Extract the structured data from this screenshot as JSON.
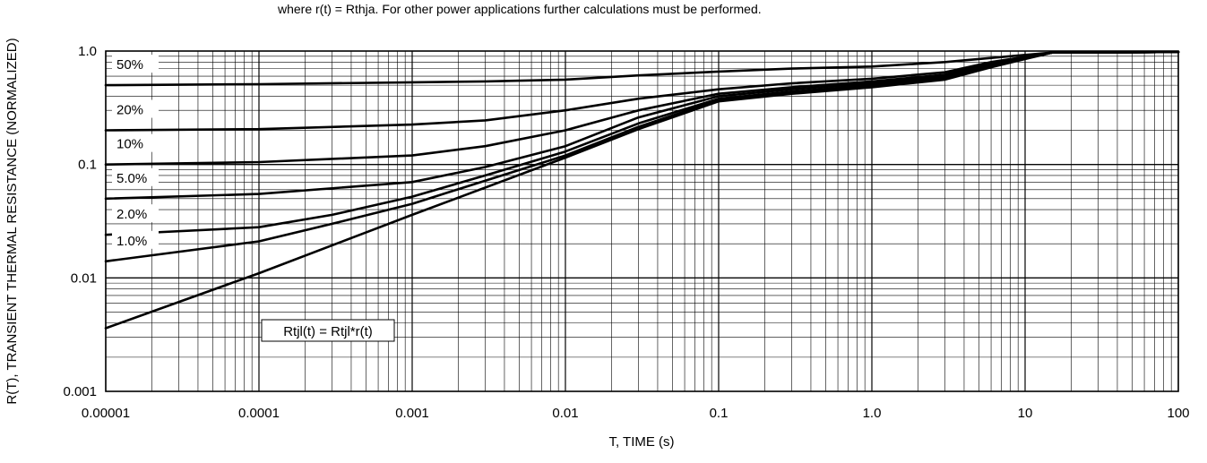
{
  "note_line": "where r(t) = Rthja. For other power applications further calculations must be performed.",
  "chart_data": {
    "type": "line",
    "title": "",
    "xlabel": "T, TIME (s)",
    "ylabel": "R(T), TRANSIENT THERMAL RESISTANCE (NORMALIZED)",
    "x_scale": "log",
    "y_scale": "log",
    "xlim": [
      1e-05,
      100
    ],
    "ylim": [
      0.001,
      1.0
    ],
    "grid": true,
    "x_ticks": [
      1e-05,
      0.0001,
      0.001,
      0.01,
      0.1,
      1.0,
      10,
      100
    ],
    "x_tick_labels": [
      "0.00001",
      "0.0001",
      "0.001",
      "0.01",
      "0.1",
      "1.0",
      "10",
      "100"
    ],
    "y_ticks": [
      0.001,
      0.01,
      0.1,
      1.0
    ],
    "y_tick_labels": [
      "0.001",
      "0.01",
      "0.1",
      "1.0"
    ],
    "annotation": "Rtjl(t) = Rtjl*r(t)",
    "series": [
      {
        "name": "50%",
        "x": [
          1e-05,
          0.0001,
          0.001,
          0.003,
          0.01,
          0.03,
          0.1,
          0.3,
          1,
          3,
          6,
          15,
          100
        ],
        "y": [
          0.5,
          0.51,
          0.53,
          0.54,
          0.56,
          0.61,
          0.66,
          0.7,
          0.73,
          0.8,
          0.87,
          0.97,
          0.98
        ]
      },
      {
        "name": "20%",
        "x": [
          1e-05,
          0.0001,
          0.001,
          0.003,
          0.01,
          0.03,
          0.1,
          0.3,
          1,
          3,
          6,
          15,
          100
        ],
        "y": [
          0.2,
          0.205,
          0.225,
          0.245,
          0.3,
          0.38,
          0.46,
          0.52,
          0.57,
          0.65,
          0.8,
          0.97,
          0.98
        ]
      },
      {
        "name": "10%",
        "x": [
          1e-05,
          0.0001,
          0.001,
          0.003,
          0.01,
          0.03,
          0.1,
          0.3,
          1,
          3,
          6,
          15,
          100
        ],
        "y": [
          0.1,
          0.105,
          0.12,
          0.145,
          0.2,
          0.3,
          0.42,
          0.48,
          0.54,
          0.62,
          0.78,
          0.97,
          0.98
        ]
      },
      {
        "name": "5.0%",
        "x": [
          1e-05,
          0.0001,
          0.001,
          0.003,
          0.01,
          0.03,
          0.1,
          0.3,
          1,
          3,
          6,
          15,
          100
        ],
        "y": [
          0.05,
          0.055,
          0.07,
          0.095,
          0.145,
          0.26,
          0.4,
          0.46,
          0.52,
          0.6,
          0.76,
          0.97,
          0.98
        ]
      },
      {
        "name": "2.0%",
        "x": [
          1e-05,
          0.0001,
          0.0003,
          0.001,
          0.003,
          0.01,
          0.03,
          0.1,
          0.3,
          1,
          3,
          6,
          15,
          100
        ],
        "y": [
          0.024,
          0.028,
          0.036,
          0.052,
          0.08,
          0.13,
          0.23,
          0.38,
          0.44,
          0.5,
          0.58,
          0.74,
          0.97,
          0.98
        ]
      },
      {
        "name": "1.0%",
        "x": [
          1e-05,
          0.0001,
          0.0003,
          0.001,
          0.003,
          0.01,
          0.03,
          0.1,
          0.3,
          1,
          3,
          6,
          15,
          100
        ],
        "y": [
          0.014,
          0.021,
          0.03,
          0.045,
          0.072,
          0.12,
          0.215,
          0.37,
          0.43,
          0.49,
          0.57,
          0.73,
          0.97,
          0.98
        ]
      },
      {
        "name": "",
        "x": [
          1e-05,
          0.0001,
          0.001,
          0.01,
          0.03,
          0.1,
          0.3,
          1,
          3,
          6,
          15,
          100
        ],
        "y": [
          0.0036,
          0.011,
          0.036,
          0.115,
          0.205,
          0.36,
          0.42,
          0.48,
          0.56,
          0.72,
          0.97,
          0.98
        ]
      }
    ],
    "legend": "labels-at-left"
  }
}
